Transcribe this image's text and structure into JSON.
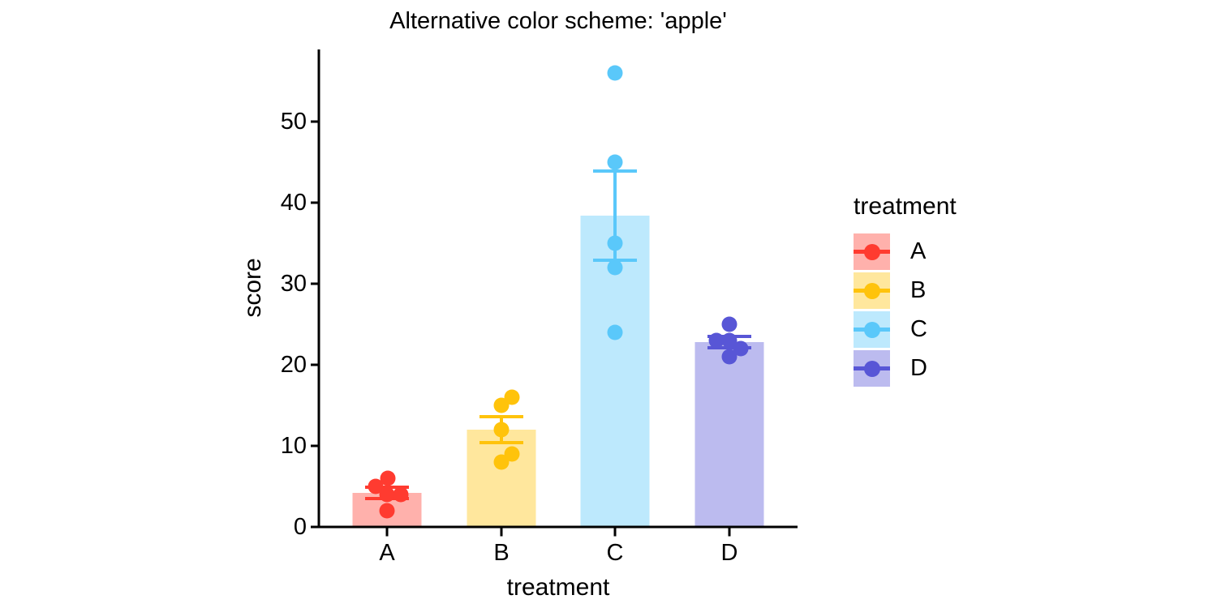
{
  "chart_data": {
    "type": "bar",
    "title": "Alternative color scheme: 'apple'",
    "xlabel": "treatment",
    "ylabel": "score",
    "categories": [
      "A",
      "B",
      "C",
      "D"
    ],
    "yticks": [
      0,
      10,
      20,
      30,
      40,
      50
    ],
    "ylim": [
      0,
      59
    ],
    "grid": false,
    "bar_alpha": 0.4,
    "error_type": "mean ± SE",
    "legend": {
      "title": "treatment",
      "position": "right"
    },
    "series": [
      {
        "name": "A",
        "color": "#FF3B30",
        "fill": "#FFB1AC",
        "mean": 4.2,
        "se": 0.7,
        "points": [
          6,
          5,
          4,
          4,
          2
        ],
        "point_dx": [
          1,
          -14,
          0,
          17,
          0
        ]
      },
      {
        "name": "B",
        "color": "#FFC30B",
        "fill": "#FFE79D",
        "mean": 12.0,
        "se": 1.6,
        "points": [
          16,
          15,
          12,
          9,
          8
        ],
        "point_dx": [
          13,
          0,
          0,
          13,
          0
        ]
      },
      {
        "name": "C",
        "color": "#5AC8FA",
        "fill": "#BDE9FD",
        "mean": 38.4,
        "se": 5.5,
        "points": [
          56,
          45,
          35,
          32,
          24
        ],
        "point_dx": [
          0,
          0,
          0,
          0,
          0
        ]
      },
      {
        "name": "D",
        "color": "#5856D6",
        "fill": "#BCBBEF",
        "mean": 22.8,
        "se": 0.7,
        "points": [
          25,
          23,
          23,
          22,
          21
        ],
        "point_dx": [
          0,
          -16,
          0,
          14,
          0
        ]
      }
    ],
    "axis_color": "#000000"
  }
}
